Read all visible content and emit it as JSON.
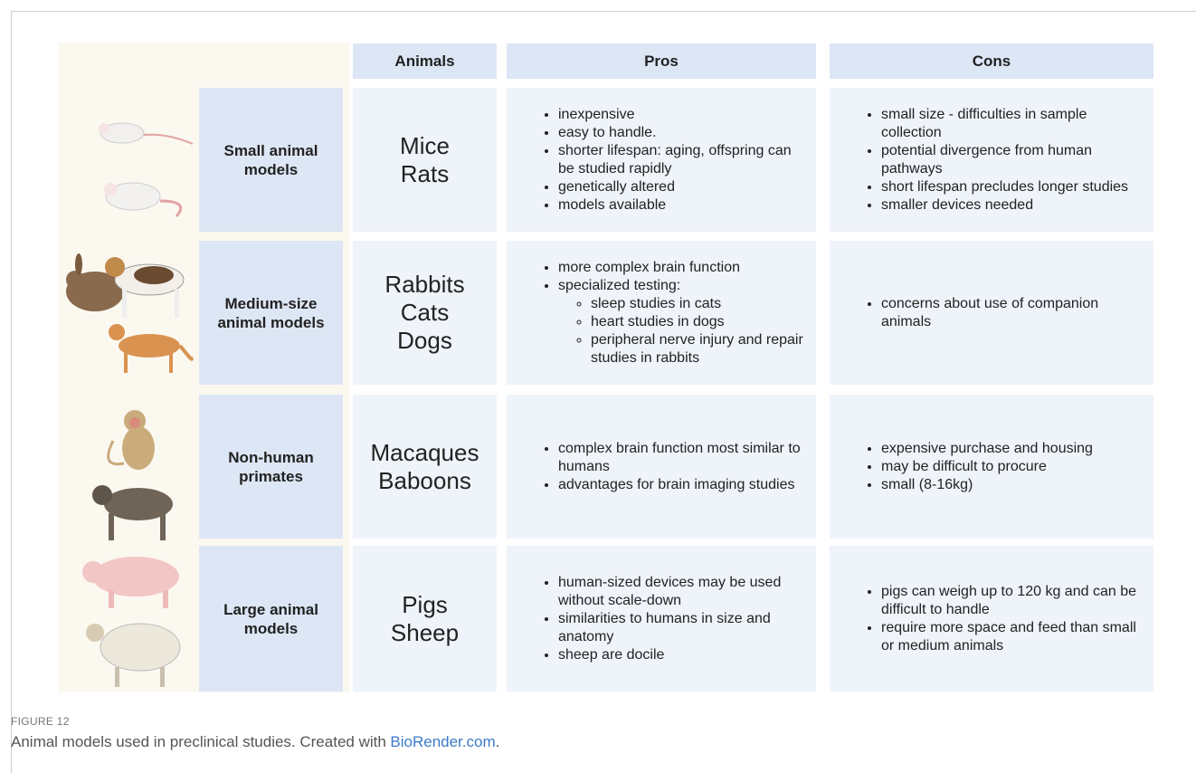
{
  "table": {
    "header": [
      "Animals",
      "Pros",
      "Cons"
    ],
    "rows": [
      {
        "group": "Small animal models",
        "animals": [
          "Mice",
          "Rats"
        ],
        "pros": [
          {
            "text": "inexpensive"
          },
          {
            "text": "easy to handle."
          },
          {
            "text": "shorter lifespan: aging, offspring can be studied rapidly"
          },
          {
            "text": "genetically altered"
          },
          {
            "text": "models available"
          }
        ],
        "cons": [
          {
            "text": "small size - difficulties in sample collection"
          },
          {
            "text": "potential divergence from human pathways"
          },
          {
            "text": "short lifespan precludes longer studies"
          },
          {
            "text": "smaller devices needed"
          }
        ]
      },
      {
        "group": "Medium-size animal models",
        "animals": [
          "Rabbits",
          "Cats",
          "Dogs"
        ],
        "pros": [
          {
            "text": "more complex brain function"
          },
          {
            "text": "specialized testing:",
            "items": [
              "sleep studies in cats",
              "heart studies in dogs",
              "peripheral nerve injury and repair studies in rabbits"
            ]
          }
        ],
        "cons": [
          {
            "text": "concerns about use of companion animals"
          }
        ]
      },
      {
        "group": "Non-human primates",
        "animals": [
          "Macaques",
          "Baboons"
        ],
        "pros": [
          {
            "text": "complex brain function most similar to humans"
          },
          {
            "text": "advantages for brain imaging studies"
          }
        ],
        "cons": [
          {
            "text": "expensive purchase and housing"
          },
          {
            "text": "may be difficult to procure"
          },
          {
            "text": "small (8-16kg)"
          }
        ]
      },
      {
        "group": "Large animal models",
        "animals": [
          "Pigs",
          "Sheep"
        ],
        "pros": [
          {
            "text": "human-sized devices may be used without scale-down"
          },
          {
            "text": "similarities to humans in size and anatomy"
          },
          {
            "text": "sheep are docile"
          }
        ],
        "cons": [
          {
            "text": "pigs can weigh up to 120 kg and can be difficult to handle"
          },
          {
            "text": "require more space and feed than small or medium animals"
          }
        ]
      }
    ]
  },
  "caption": {
    "label": "FIGURE 12",
    "text": "Animal models used in preclinical studies. Created with",
    "link": "BioRender.com",
    "end": "."
  }
}
